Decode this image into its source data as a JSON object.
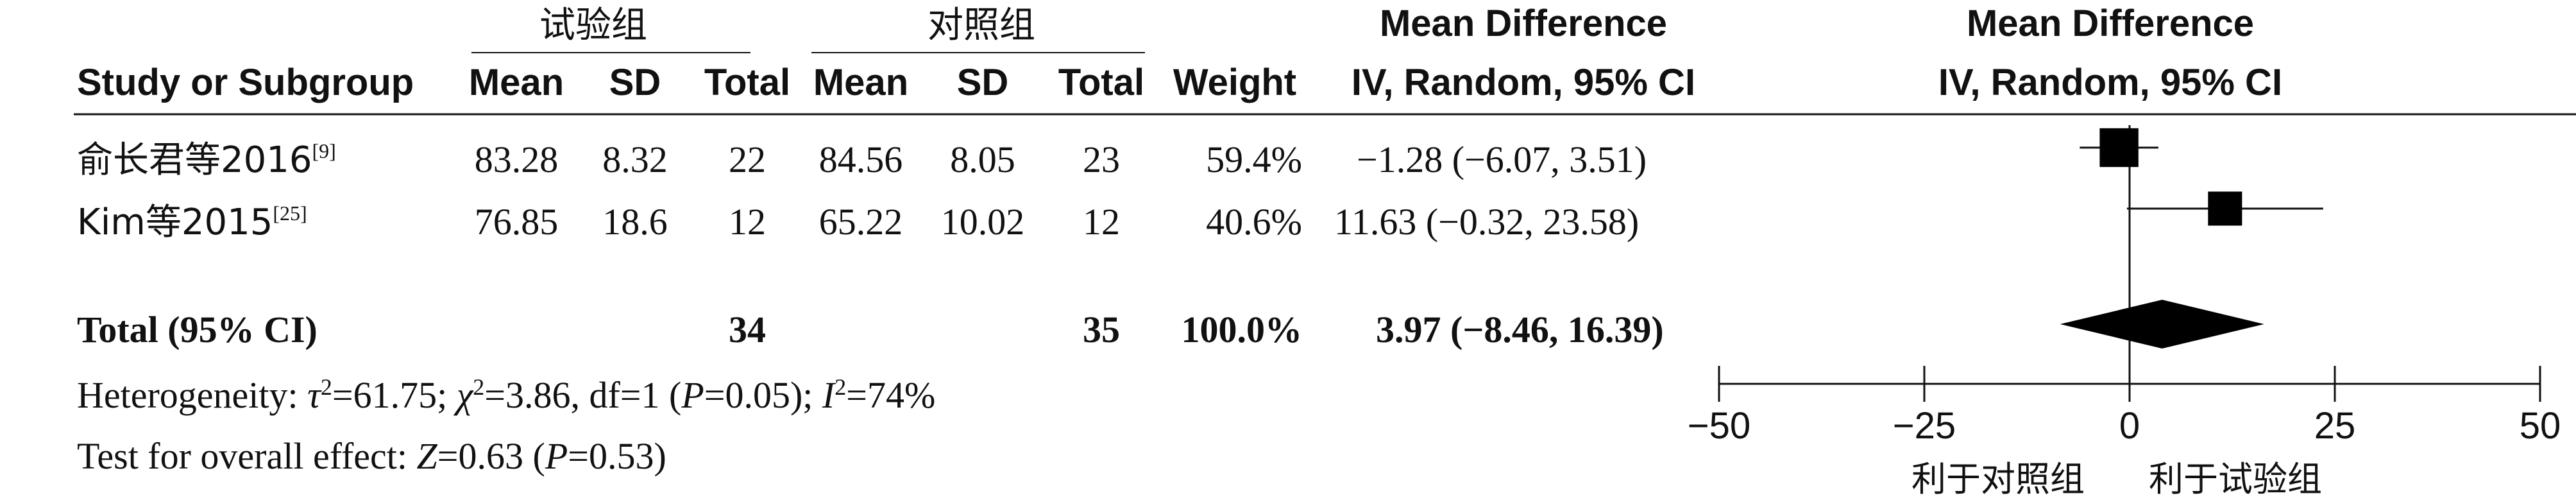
{
  "header": {
    "group_experimental": "试验组",
    "group_control": "对照组",
    "mean_difference": "Mean Difference",
    "study_or_subgroup": "Study or Subgroup",
    "mean": "Mean",
    "sd": "SD",
    "total": "Total",
    "weight": "Weight",
    "method": "IV, Random, 95% CI"
  },
  "studies": [
    {
      "name": "俞长君等2016",
      "ref": "[9]",
      "exp_mean": "83.28",
      "exp_sd": "8.32",
      "exp_total": "22",
      "ctl_mean": "84.56",
      "ctl_sd": "8.05",
      "ctl_total": "23",
      "weight": "59.4%",
      "ci_text": "−1.28 (−6.07, 3.51)"
    },
    {
      "name": "Kim等2015",
      "ref": "[25]",
      "exp_mean": "76.85",
      "exp_sd": "18.6",
      "exp_total": "12",
      "ctl_mean": "65.22",
      "ctl_sd": "10.02",
      "ctl_total": "12",
      "weight": "40.6%",
      "ci_text": "11.63 (−0.32, 23.58)"
    }
  ],
  "total": {
    "label": "Total (95% CI)",
    "exp_total": "34",
    "ctl_total": "35",
    "weight": "100.0%",
    "ci_text": "3.97 (−8.46, 16.39)"
  },
  "heterogeneity": {
    "prefix": "Heterogeneity: ",
    "tau": "τ",
    "tau_rest": "=61.75; ",
    "chi": "χ",
    "chi_rest": "=3.86, df=1 (",
    "p1": "P",
    "p1_rest": "=0.05); ",
    "i": "I",
    "i_rest": "=74%",
    "sup": "2"
  },
  "overall": {
    "prefix": "Test for overall effect: ",
    "z": "Z",
    "z_rest": "=0.63 (",
    "p": "P",
    "p_rest": "=0.53)"
  },
  "favours": {
    "left": "利于对照组",
    "right": "利于试验组"
  },
  "chart_data": {
    "type": "forest",
    "xlim": [
      -50,
      50
    ],
    "xticks": [
      "−50",
      "−25",
      "0",
      "25",
      "50"
    ],
    "xtick_values": [
      -50,
      -25,
      0,
      25,
      50
    ],
    "null_line": 0,
    "studies": [
      {
        "name": "俞长君等2016",
        "md": -1.28,
        "lower": -6.07,
        "upper": 3.51,
        "weight": 59.4
      },
      {
        "name": "Kim等2015",
        "md": 11.63,
        "lower": -0.32,
        "upper": 23.58,
        "weight": 40.6
      }
    ],
    "pooled": {
      "md": 3.97,
      "lower": -8.46,
      "upper": 16.39
    }
  }
}
